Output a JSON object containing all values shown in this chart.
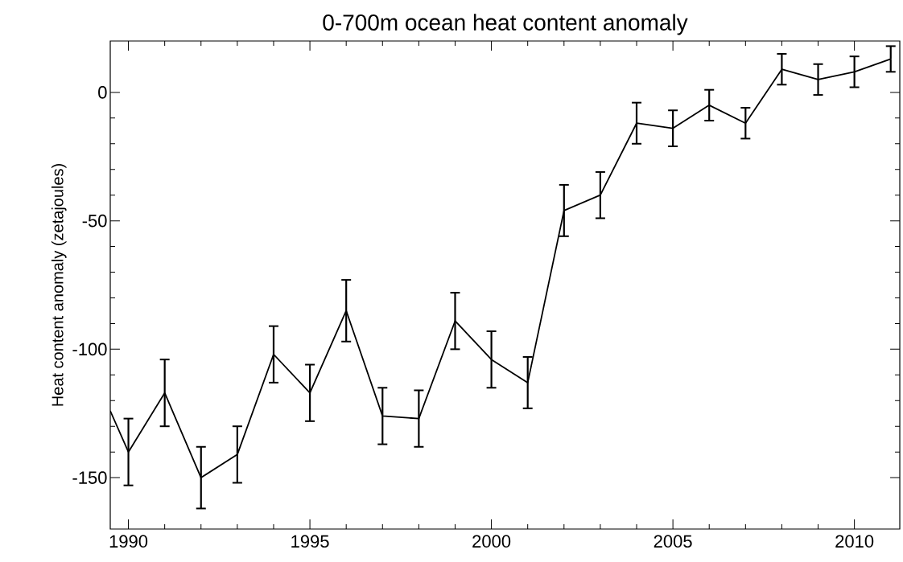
{
  "chart_data": {
    "type": "line",
    "title": "0-700m ocean heat content anomaly",
    "ylabel": "Heat content anomaly (zetajoules)",
    "color": "#000000",
    "x": [
      1989.5,
      1990,
      1991,
      1992,
      1993,
      1994,
      1995,
      1996,
      1997,
      1998,
      1999,
      2000,
      2001,
      2002,
      2003,
      2004,
      2005,
      2006,
      2007,
      2008,
      2009,
      2010,
      2011
    ],
    "values": [
      -124,
      -140,
      -117,
      -150,
      -141,
      -102,
      -117,
      -85,
      -126,
      -127,
      -89,
      -104,
      -113,
      -46,
      -40,
      -12,
      -14,
      -5,
      -12,
      9,
      5,
      8,
      13
    ],
    "errors": [
      null,
      13,
      13,
      12,
      11,
      11,
      11,
      12,
      11,
      11,
      11,
      11,
      10,
      10,
      9,
      8,
      7,
      6,
      6,
      6,
      6,
      6,
      5
    ],
    "xlim": [
      1989.5,
      2011.25
    ],
    "ylim": [
      -170,
      20
    ],
    "xticks": [
      1990,
      1995,
      2000,
      2005,
      2010
    ],
    "yticks": [
      -150,
      -100,
      -50,
      0
    ]
  }
}
